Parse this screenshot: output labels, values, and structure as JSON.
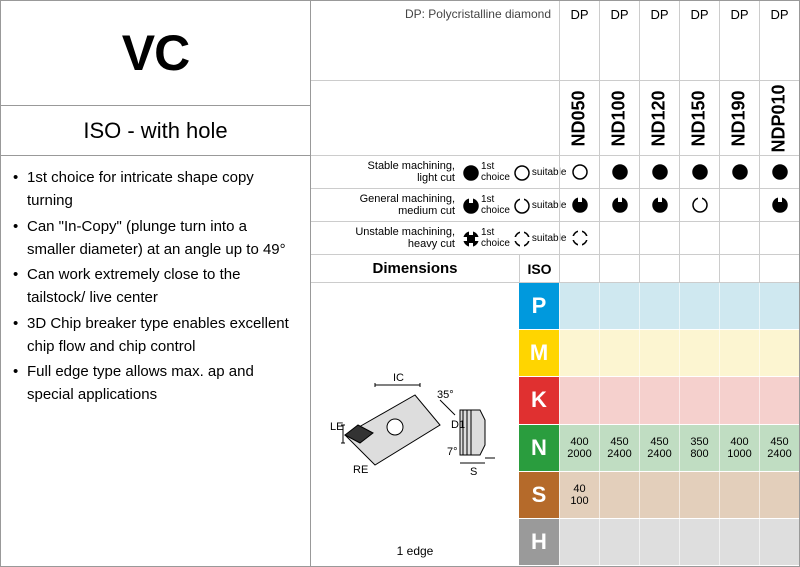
{
  "title": "VC",
  "subtitle": "ISO - with hole",
  "bullets": [
    "1st choice for intricate shape copy turning",
    "Can \"In-Copy\" (plunge turn into a smaller diameter) at an angle up to 49°",
    "Can work extremely close to the tailstock/ live center",
    "3D Chip breaker type enables excellent chip flow and chip control",
    "Full edge type allows max. ap and special applications"
  ],
  "dp_note": "DP: Polycristalline diamond",
  "dp_label": "DP",
  "grades": [
    "ND050",
    "ND100",
    "ND120",
    "ND150",
    "ND190",
    "NDP010"
  ],
  "legend": [
    {
      "label_line1": "Stable machining,",
      "label_line2": "light cut",
      "first": "1st choice",
      "suit": "suitable",
      "icon": "solid"
    },
    {
      "label_line1": "General machining,",
      "label_line2": "medium cut",
      "first": "1st choice",
      "suit": "suitable",
      "icon": "notch"
    },
    {
      "label_line1": "Unstable machining,",
      "label_line2": "heavy cut",
      "first": "1st choice",
      "suit": "suitable",
      "icon": "spiky"
    }
  ],
  "suitability": {
    "stable": [
      "open",
      "solid",
      "solid",
      "solid",
      "solid",
      "solid"
    ],
    "general": [
      "notch-s",
      "notch-s",
      "notch-s",
      "notch-o",
      "",
      "notch-s"
    ],
    "unstable": [
      "spiky-o",
      "",
      "",
      "",
      "",
      ""
    ]
  },
  "dimensions_label": "Dimensions",
  "iso_label": "ISO",
  "diagram_caption": "1 edge",
  "diagram_labels": {
    "ic": "IC",
    "le": "LE",
    "re": "RE",
    "ang1": "35°",
    "d1": "D1",
    "ang2": "7°",
    "s": "S"
  },
  "materials": [
    {
      "code": "P",
      "letter_bg": "#0099dd",
      "row_bg": "#cfe8f0",
      "cells": [
        "",
        "",
        "",
        "",
        "",
        ""
      ]
    },
    {
      "code": "M",
      "letter_bg": "#ffd500",
      "row_bg": "#fcf5d1",
      "cells": [
        "",
        "",
        "",
        "",
        "",
        ""
      ]
    },
    {
      "code": "K",
      "letter_bg": "#e03030",
      "row_bg": "#f5d0cd",
      "cells": [
        "",
        "",
        "",
        "",
        "",
        ""
      ]
    },
    {
      "code": "N",
      "letter_bg": "#2a9d3e",
      "row_bg": "#c0ddc2",
      "cells": [
        [
          "400",
          "2000"
        ],
        [
          "450",
          "2400"
        ],
        [
          "450",
          "2400"
        ],
        [
          "350",
          "800"
        ],
        [
          "400",
          "1000"
        ],
        [
          "450",
          "2400"
        ]
      ]
    },
    {
      "code": "S",
      "letter_bg": "#b56a2a",
      "row_bg": "#e3cfbb",
      "cells": [
        [
          "40",
          "100"
        ],
        "",
        "",
        "",
        "",
        ""
      ]
    },
    {
      "code": "H",
      "letter_bg": "#9a9a9a",
      "row_bg": "#dedede",
      "cells": [
        "",
        "",
        "",
        "",
        "",
        ""
      ]
    }
  ],
  "colors": {
    "border": "#999",
    "text": "#000"
  }
}
